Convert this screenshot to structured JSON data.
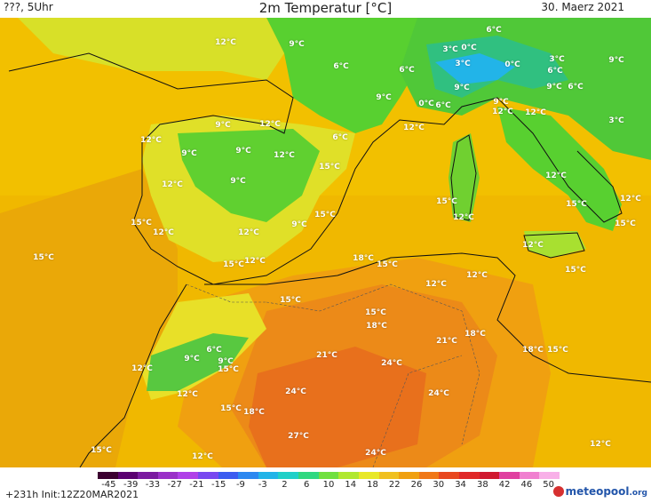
{
  "header": {
    "left": "???, 5Uhr",
    "title": "2m Temperatur [°C]",
    "date": "30. Maerz 2021"
  },
  "labels": [
    "12°C",
    "9°C",
    "6°C",
    "3°C",
    "0°C",
    "6°C",
    "3°C",
    "0°C",
    "6°C",
    "3°C",
    "9°C",
    "6°C",
    "9°C",
    "0°C",
    "6°C",
    "9°C",
    "6°C",
    "12°C",
    "9°C",
    "12°C",
    "9°C",
    "3°C",
    "12°C",
    "9°C",
    "12°C",
    "6°C",
    "12°C",
    "9°C",
    "9°C",
    "12°C",
    "15°C",
    "12°C",
    "9°C",
    "12°C",
    "15°C",
    "12°C",
    "15°C",
    "12°C",
    "12°C",
    "15°C",
    "15°C",
    "12°C",
    "9°C",
    "15°C",
    "15°C",
    "15°C",
    "18°C",
    "15°C",
    "12°C",
    "12°C",
    "12°C",
    "12°C",
    "15°C",
    "15°C",
    "18°C",
    "15°C",
    "21°C",
    "18°C",
    "18°C",
    "15°C",
    "9°C",
    "6°C",
    "9°C",
    "15°C",
    "12°C",
    "21°C",
    "24°C",
    "12°C",
    "24°C",
    "24°C",
    "15°C",
    "18°C",
    "27°C",
    "15°C",
    "12°C",
    "24°C",
    "12°C"
  ],
  "colorbar": {
    "ticks": [
      "-45",
      "-39",
      "-33",
      "-27",
      "-21",
      "-15",
      "-9",
      "-3",
      "2",
      "6",
      "10",
      "14",
      "18",
      "22",
      "26",
      "30",
      "34",
      "38",
      "42",
      "46",
      "50"
    ],
    "colors": [
      "#3b0030",
      "#5a0070",
      "#7a1aa0",
      "#9a30c8",
      "#b040e8",
      "#7848f0",
      "#3c5cf0",
      "#2c88f0",
      "#22b4e8",
      "#20d0c8",
      "#30d880",
      "#70e040",
      "#b0e830",
      "#e8e828",
      "#f0c020",
      "#f0a010",
      "#f07818",
      "#e84820",
      "#e02828",
      "#d01830",
      "#e040a0",
      "#f080d0",
      "#f8b0e8"
    ]
  },
  "footer": {
    "run": "+231h Init:12Z20MAR2021",
    "brand_main": "meteopool",
    "brand_tld": ".org"
  }
}
